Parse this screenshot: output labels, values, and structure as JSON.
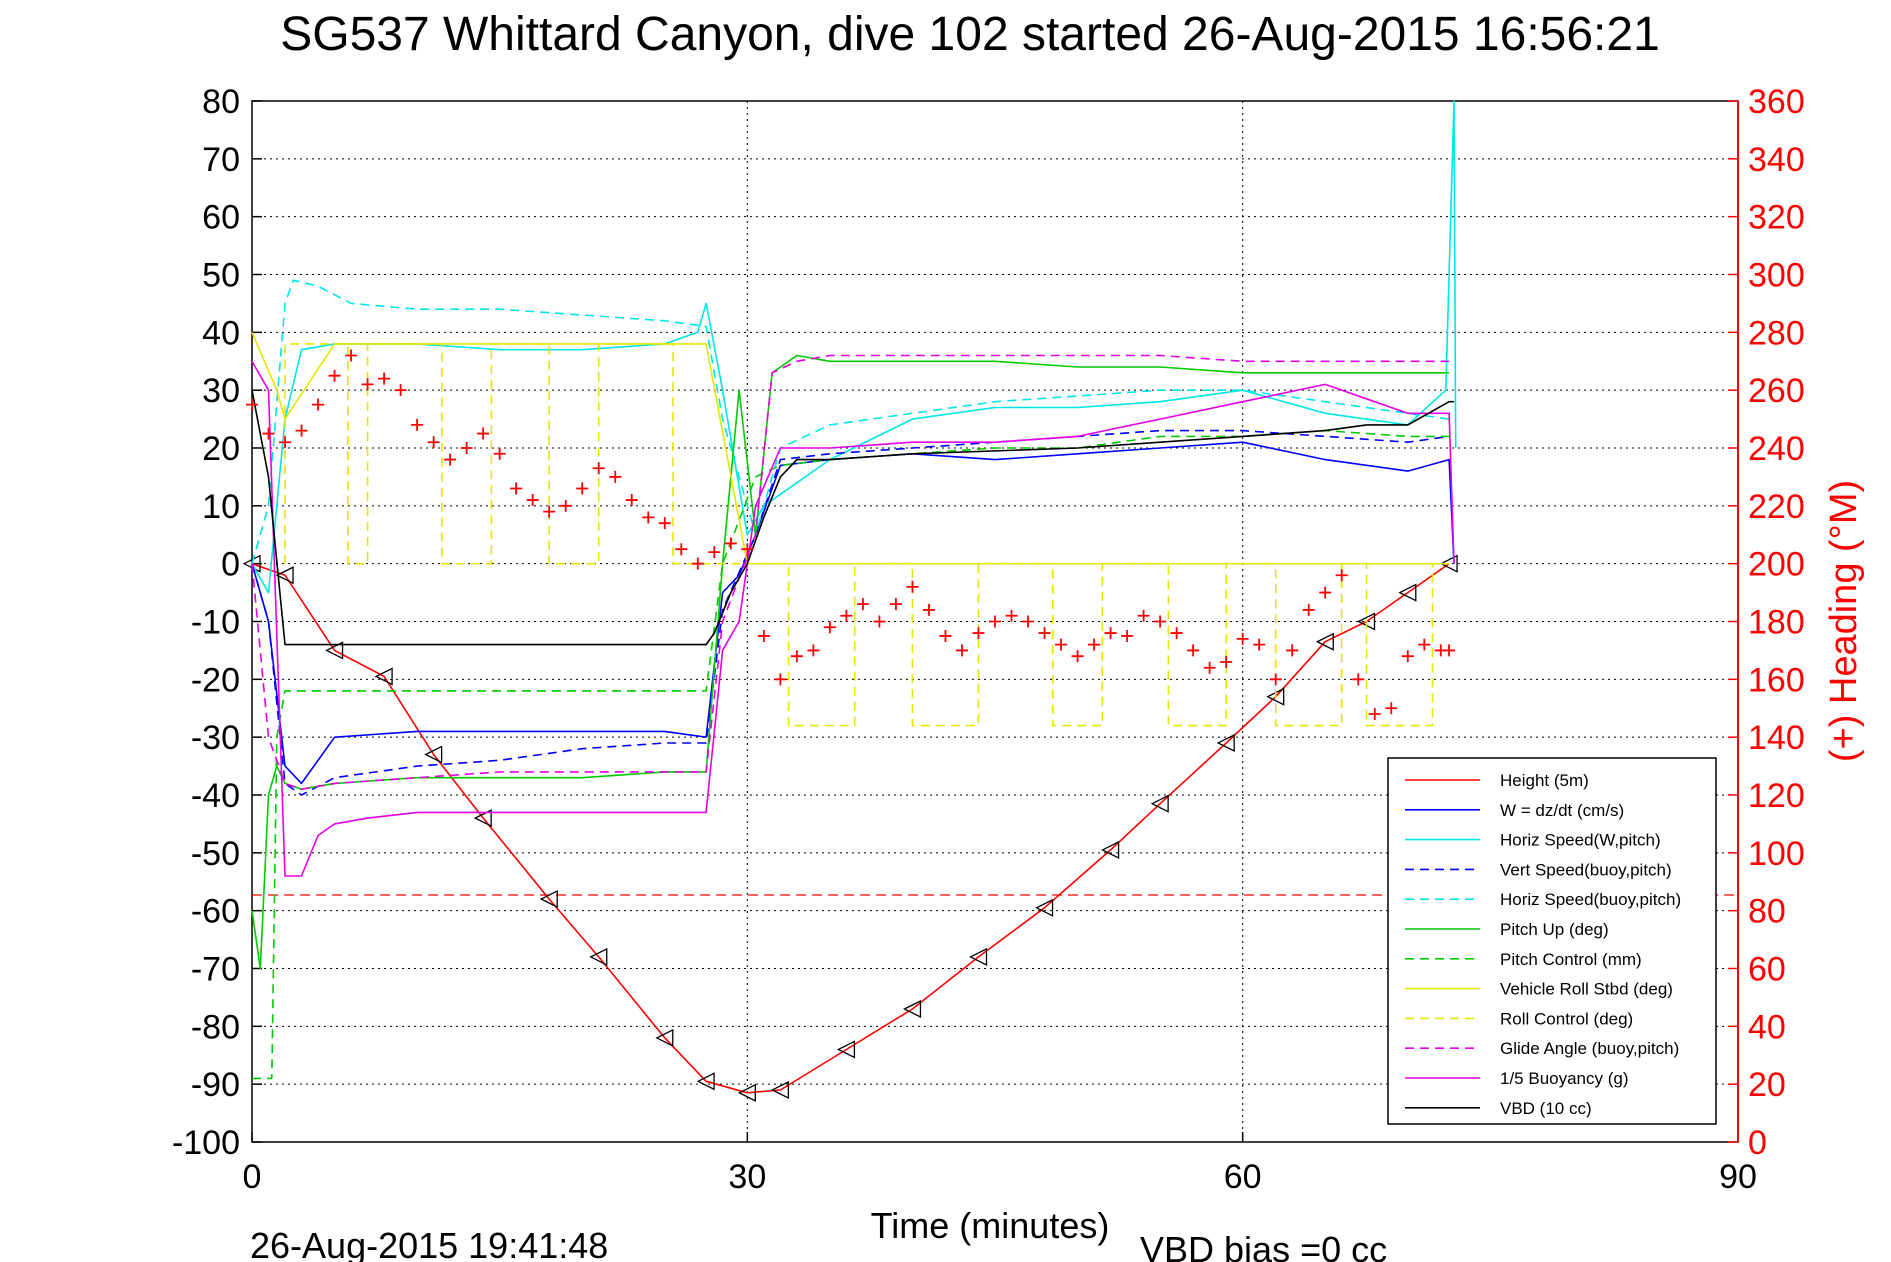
{
  "chart_data": {
    "type": "line",
    "title": "SG537 Whittard Canyon, dive 102 started 26-Aug-2015 16:56:21",
    "xlabel": "Time (minutes)",
    "ylabel": "",
    "y2label": "(+) Heading (°M)",
    "xlim": [
      0,
      90
    ],
    "ylim": [
      -100,
      80
    ],
    "y2lim": [
      0,
      360
    ],
    "x_ticks": [
      0,
      30,
      60,
      90
    ],
    "y_ticks": [
      80,
      70,
      60,
      50,
      40,
      30,
      20,
      10,
      0,
      -10,
      -20,
      -30,
      -40,
      -50,
      -60,
      -70,
      -80,
      -90,
      -100
    ],
    "y2_ticks": [
      360,
      340,
      320,
      300,
      280,
      260,
      240,
      220,
      200,
      180,
      160,
      140,
      120,
      100,
      80,
      60,
      40,
      20,
      0
    ],
    "grid": true,
    "legend_position": "bottom-right",
    "footer_left": "26-Aug-2015 19:41:48",
    "footer_right": "VBD bias =0 cc",
    "series": [
      {
        "name": "Height (5m)",
        "color": "#ff0000",
        "dash": "solid",
        "marker": "triangle-left",
        "x": [
          0,
          2,
          5,
          8,
          11,
          14,
          18,
          21,
          25,
          27.5,
          30,
          32,
          36,
          40,
          44,
          48,
          52,
          55,
          59,
          62,
          65,
          67.5,
          70,
          72.5
        ],
        "y": [
          0,
          -2,
          -15,
          -19.5,
          -33,
          -44,
          -58,
          -68,
          -82,
          -89.5,
          -91.5,
          -91,
          -84,
          -77,
          -68,
          -59.5,
          -49.5,
          -41.5,
          -31,
          -23,
          -13.5,
          -10,
          -5,
          0
        ]
      },
      {
        "name": "W = dz/dt (cm/s)",
        "color": "#0000ff",
        "dash": "solid",
        "marker": "none",
        "x": [
          0,
          1,
          2,
          3,
          5,
          10,
          15,
          20,
          25,
          27.5,
          28.5,
          29.5,
          30.5,
          32,
          35,
          40,
          45,
          50,
          55,
          60,
          65,
          70,
          72.5,
          72.8
        ],
        "y": [
          0,
          -10,
          -35,
          -38,
          -30,
          -29,
          -29,
          -29,
          -29,
          -30,
          -5,
          -2,
          5,
          17,
          18,
          19,
          18,
          19,
          20,
          21,
          18,
          16,
          18,
          0
        ]
      },
      {
        "name": "Horiz Speed(W,pitch)",
        "color": "#00e6e6",
        "dash": "solid",
        "marker": "none",
        "x": [
          0,
          1,
          2,
          3,
          5,
          10,
          15,
          20,
          25,
          27,
          27.5,
          28.5,
          30,
          31,
          32,
          35,
          40,
          45,
          50,
          55,
          60,
          65,
          70,
          72.3,
          72.8,
          72.9
        ],
        "y": [
          0,
          -5,
          25,
          37,
          38,
          38,
          37,
          37,
          38,
          40,
          45,
          30,
          5,
          10,
          12,
          18,
          25,
          27,
          27,
          28,
          30,
          26,
          24,
          30,
          80,
          20
        ]
      },
      {
        "name": "Vert Speed(buoy,pitch)",
        "color": "#0000ff",
        "dash": "dash",
        "marker": "none",
        "x": [
          0,
          1,
          2,
          3,
          5,
          10,
          15,
          20,
          25,
          27.5,
          28.5,
          30.5,
          32,
          35,
          40,
          45,
          50,
          55,
          60,
          65,
          70,
          72.5
        ],
        "y": [
          0,
          -10,
          -38,
          -40,
          -37,
          -35,
          -34,
          -32,
          -31,
          -31,
          -8,
          5,
          18,
          19,
          20,
          21,
          22,
          23,
          23,
          22,
          21,
          22
        ]
      },
      {
        "name": "Horiz Speed(buoy,pitch)",
        "color": "#00e6e6",
        "dash": "dash",
        "marker": "none",
        "x": [
          0,
          1,
          2,
          2.5,
          4,
          6,
          10,
          15,
          20,
          25,
          27.5,
          28.5,
          30.5,
          32,
          35,
          40,
          45,
          50,
          55,
          60,
          65,
          70,
          72.5
        ],
        "y": [
          0,
          10,
          45,
          49,
          48,
          45,
          44,
          44,
          43,
          42,
          41,
          25,
          5,
          20,
          24,
          26,
          28,
          29,
          30,
          30,
          28,
          26,
          25
        ]
      },
      {
        "name": "Pitch Up (deg)",
        "color": "#00cc00",
        "dash": "solid",
        "marker": "none",
        "x": [
          0,
          0.5,
          1,
          1.5,
          2,
          3,
          5,
          10,
          15,
          20,
          25,
          27.5,
          28.5,
          29.5,
          30.5,
          31.5,
          33,
          35,
          40,
          45,
          50,
          55,
          60,
          65,
          70,
          72.5
        ],
        "y": [
          -60,
          -70,
          -40,
          -35,
          -38,
          -39,
          -38,
          -37,
          -37,
          -37,
          -36,
          -36,
          0,
          30,
          5,
          33,
          36,
          35,
          35,
          35,
          34,
          34,
          33,
          33,
          33,
          33
        ]
      },
      {
        "name": "Pitch Control (mm)",
        "color": "#00cc00",
        "dash": "dash",
        "marker": "none",
        "x": [
          0,
          0.5,
          1.2,
          1.5,
          2,
          3,
          5,
          10,
          15,
          20,
          25,
          27.5,
          28.5,
          30.5,
          32,
          35,
          40,
          45,
          50,
          55,
          60,
          65,
          70,
          72.5
        ],
        "y": [
          -89,
          -89,
          -89,
          -30,
          -22,
          -22,
          -22,
          -22,
          -22,
          -22,
          -22,
          -22,
          0,
          15,
          17,
          18,
          19,
          20,
          20,
          22,
          22,
          23,
          22,
          22
        ]
      },
      {
        "name": "Vehicle Roll Stbd (deg)",
        "color": "#e6e600",
        "dash": "solid",
        "marker": "none",
        "x": [
          0,
          1.5,
          2,
          5,
          10,
          20,
          27.5,
          30,
          32,
          40,
          50,
          60,
          65,
          70,
          72.5
        ],
        "y": [
          40,
          30,
          25,
          38,
          38,
          38,
          38,
          0,
          0,
          0,
          0,
          0,
          0,
          0,
          0
        ]
      },
      {
        "name": "Roll Control (deg)",
        "color": "#e6e600",
        "dash": "dash",
        "marker": "none",
        "x": [
          2,
          2,
          5.8,
          5.8,
          7,
          7,
          11.5,
          11.5,
          14.5,
          14.5,
          18,
          18,
          21,
          21,
          25.5,
          25.5,
          28.5,
          28.5,
          32.5,
          32.5,
          36.5,
          36.5,
          40,
          40,
          44,
          44,
          48.5,
          48.5,
          51.5,
          51.5,
          55.5,
          55.5,
          59,
          59,
          62,
          62,
          66,
          66,
          67.5,
          67.5,
          71.5,
          71.5
        ],
        "y": [
          0,
          38,
          38,
          0,
          0,
          38,
          38,
          0,
          0,
          38,
          38,
          0,
          0,
          38,
          38,
          0,
          0,
          0,
          0,
          -28,
          -28,
          0,
          0,
          -28,
          -28,
          0,
          0,
          -28,
          -28,
          0,
          0,
          -28,
          -28,
          0,
          0,
          -28,
          -28,
          0,
          0,
          -28,
          -28,
          0
        ]
      },
      {
        "name": "Glide Angle (buoy,pitch)",
        "color": "#e600e6",
        "dash": "dash",
        "marker": "none",
        "x": [
          0,
          1,
          2,
          3,
          5,
          10,
          15,
          20,
          25,
          27.5,
          28.5,
          30.5,
          31.5,
          33,
          35,
          40,
          45,
          50,
          55,
          60,
          65,
          70,
          72.5
        ],
        "y": [
          0,
          -30,
          -38,
          -39,
          -38,
          -37,
          -36,
          -36,
          -36,
          -36,
          -10,
          5,
          33,
          35,
          36,
          36,
          36,
          36,
          36,
          35,
          35,
          35,
          35
        ]
      },
      {
        "name": "1/5 Buoyancy (g)",
        "color": "#e600e6",
        "dash": "solid",
        "marker": "none",
        "x": [
          0,
          1,
          2,
          3,
          4,
          5,
          7,
          10,
          15,
          20,
          25,
          27.5,
          28.5,
          29.5,
          30.5,
          32,
          35,
          40,
          45,
          50,
          55,
          60,
          65,
          70,
          72.5,
          72.8
        ],
        "y": [
          35,
          30,
          -54,
          -54,
          -47,
          -45,
          -44,
          -43,
          -43,
          -43,
          -43,
          -43,
          -15,
          -10,
          10,
          20,
          20,
          21,
          21,
          22,
          25,
          28,
          31,
          26,
          26,
          0
        ]
      },
      {
        "name": "VBD (10 cc)",
        "color": "#000000",
        "dash": "solid",
        "marker": "none",
        "x": [
          0,
          1,
          2,
          3,
          10,
          20,
          27.5,
          28,
          29,
          30,
          31,
          32,
          33,
          35,
          40,
          50,
          55,
          60,
          65,
          67.5,
          70,
          72.5,
          72.8
        ],
        "y": [
          30,
          15,
          -14,
          -14,
          -14,
          -14,
          -14,
          -12,
          -5,
          0,
          8,
          15,
          18,
          18,
          19,
          20,
          21,
          22,
          23,
          24,
          24,
          28,
          28
        ]
      },
      {
        "name": "Heading",
        "color": "#ff0000",
        "dash": "none",
        "marker": "plus",
        "axis": "right",
        "x": [
          0,
          1,
          2,
          3,
          4,
          5,
          6,
          7,
          8,
          9,
          10,
          11,
          12,
          13,
          14,
          15,
          16,
          17,
          18,
          19,
          20,
          21,
          22,
          23,
          24,
          25,
          26,
          27,
          28,
          29,
          30,
          31,
          32,
          33,
          34,
          35,
          36,
          37,
          38,
          39,
          40,
          41,
          42,
          43,
          44,
          45,
          46,
          47,
          48,
          49,
          50,
          51,
          52,
          53,
          54,
          55,
          56,
          57,
          58,
          59,
          60,
          61,
          62,
          63,
          64,
          65,
          66,
          67,
          68,
          69,
          70,
          71,
          72,
          72.5
        ],
        "y": [
          255,
          245,
          242,
          246,
          255,
          265,
          272,
          262,
          264,
          260,
          248,
          242,
          236,
          240,
          245,
          238,
          226,
          222,
          218,
          220,
          226,
          233,
          230,
          222,
          216,
          214,
          205,
          200,
          204,
          207,
          205,
          175,
          160,
          168,
          170,
          178,
          182,
          186,
          180,
          186,
          192,
          184,
          175,
          170,
          176,
          180,
          182,
          180,
          176,
          172,
          168,
          172,
          176,
          175,
          182,
          180,
          176,
          170,
          164,
          166,
          174,
          172,
          160,
          170,
          184,
          190,
          196,
          160,
          148,
          150,
          168,
          172,
          170,
          170
        ]
      }
    ]
  }
}
